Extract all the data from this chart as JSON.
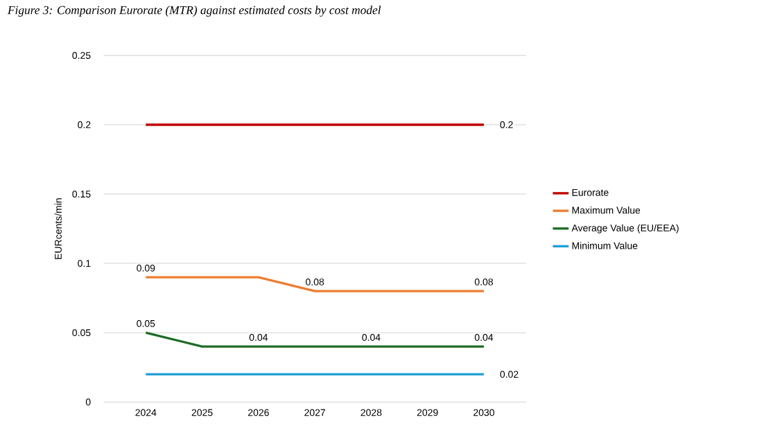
{
  "chart_data": {
    "type": "line",
    "title": "Figure 3: Comparison Eurorate (MTR) against estimated costs by cost model",
    "ylabel": "EURcents/min",
    "categories": [
      "2024",
      "2025",
      "2026",
      "2027",
      "2028",
      "2029",
      "2030"
    ],
    "series": [
      {
        "name": "Eurorate",
        "color": "#c00000",
        "values": [
          0.2,
          0.2,
          0.2,
          0.2,
          0.2,
          0.2,
          0.2
        ],
        "value_labels": [
          null,
          null,
          null,
          null,
          null,
          null,
          "0.2"
        ]
      },
      {
        "name": "Maximum Value",
        "color": "#ed7d31",
        "values": [
          0.09,
          0.09,
          0.09,
          0.08,
          0.08,
          0.08,
          0.08
        ],
        "value_labels": [
          "0.09",
          null,
          null,
          "0.08",
          null,
          null,
          "0.08"
        ]
      },
      {
        "name": "Average Value (EU/EEA)",
        "color": "#1e6b24",
        "values": [
          0.05,
          0.04,
          0.04,
          0.04,
          0.04,
          0.04,
          0.04
        ],
        "value_labels": [
          "0.05",
          null,
          "0.04",
          null,
          "0.04",
          null,
          "0.04"
        ]
      },
      {
        "name": "Minimum Value",
        "color": "#1c9fd6",
        "values": [
          0.02,
          0.02,
          0.02,
          0.02,
          0.02,
          0.02,
          0.02
        ],
        "value_labels": [
          null,
          null,
          null,
          null,
          null,
          null,
          "0.02"
        ]
      }
    ],
    "ylim": [
      0,
      0.25
    ],
    "yticks": [
      0,
      0.05,
      0.1,
      0.15,
      0.2,
      0.25
    ],
    "grid": "y",
    "legend": "right",
    "marker": "none",
    "line_style": "solid"
  }
}
